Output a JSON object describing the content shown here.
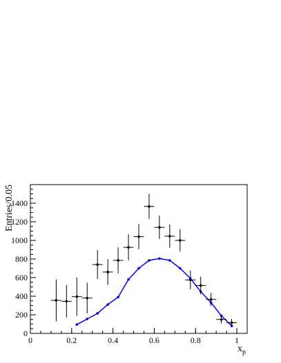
{
  "chart_data": {
    "type": "scatter",
    "xlabel": "x",
    "xlabel_sub": "p",
    "ylabel": "Entries/0.05",
    "xlim": [
      0,
      1.05
    ],
    "ylim": [
      0,
      1600
    ],
    "x_ticks": [
      0,
      0.2,
      0.4,
      0.6,
      0.8,
      1
    ],
    "x_tick_labels": [
      "0",
      "0.2",
      "0.4",
      "0.6",
      "0.8",
      "1"
    ],
    "y_ticks": [
      0,
      200,
      400,
      600,
      800,
      1000,
      1200,
      1400
    ],
    "y_tick_labels": [
      "0",
      "200",
      "400",
      "600",
      "800",
      "1000",
      "1200",
      "1400"
    ],
    "x_minor_step": 0.05,
    "y_minor_step": 50,
    "grid": false,
    "colors": {
      "data": "#000000",
      "model": "#0000ee"
    },
    "series": [
      {
        "kind": "points-with-errors",
        "x": [
          0.125,
          0.175,
          0.225,
          0.275,
          0.325,
          0.375,
          0.425,
          0.475,
          0.525,
          0.575,
          0.625,
          0.675,
          0.725,
          0.775,
          0.825,
          0.875,
          0.925,
          0.975
        ],
        "y": [
          355,
          345,
          395,
          380,
          740,
          660,
          785,
          925,
          1040,
          1365,
          1140,
          1045,
          1000,
          575,
          515,
          365,
          150,
          115
        ],
        "yerr": [
          225,
          175,
          205,
          165,
          155,
          140,
          140,
          140,
          135,
          135,
          125,
          125,
          120,
          100,
          95,
          70,
          45,
          40
        ],
        "xerr": 0.025
      },
      {
        "kind": "line",
        "x": [
          0.225,
          0.275,
          0.325,
          0.375,
          0.425,
          0.475,
          0.525,
          0.575,
          0.625,
          0.675,
          0.725,
          0.775,
          0.825,
          0.875,
          0.925,
          0.975
        ],
        "y": [
          95,
          155,
          215,
          310,
          390,
          580,
          700,
          785,
          805,
          785,
          700,
          590,
          450,
          330,
          190,
          80
        ]
      }
    ]
  }
}
